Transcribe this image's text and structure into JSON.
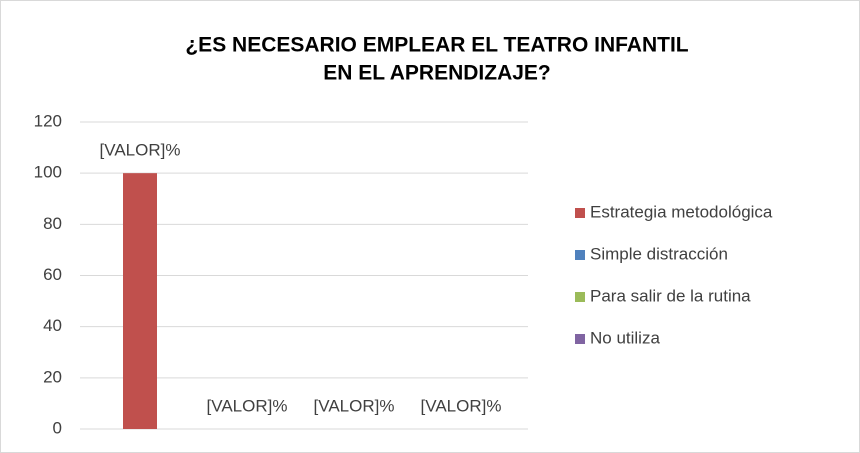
{
  "chart_data": {
    "type": "bar",
    "title": [
      "¿ES NECESARIO EMPLEAR EL TEATRO INFANTIL",
      "EN EL APRENDIZAJE?"
    ],
    "categories": [
      null
    ],
    "series": [
      {
        "name": "Estrategia metodológica",
        "color": "#c0504d",
        "values": [
          100
        ],
        "value_labels": [
          "[VALOR]%"
        ]
      },
      {
        "name": "Simple distracción",
        "color": "#4f81bd",
        "values": [
          0
        ],
        "value_labels": [
          "[VALOR]%"
        ]
      },
      {
        "name": "Para salir de la rutina",
        "color": "#9bbb59",
        "values": [
          0
        ],
        "value_labels": [
          "[VALOR]%"
        ]
      },
      {
        "name": "No utiliza",
        "color": "#8064a2",
        "values": [
          0
        ],
        "value_labels": [
          "[VALOR]%"
        ]
      }
    ],
    "ylim": [
      0,
      120
    ],
    "yticks": [
      0,
      20,
      40,
      60,
      80,
      100,
      120
    ],
    "grid": true,
    "legend": "right"
  }
}
